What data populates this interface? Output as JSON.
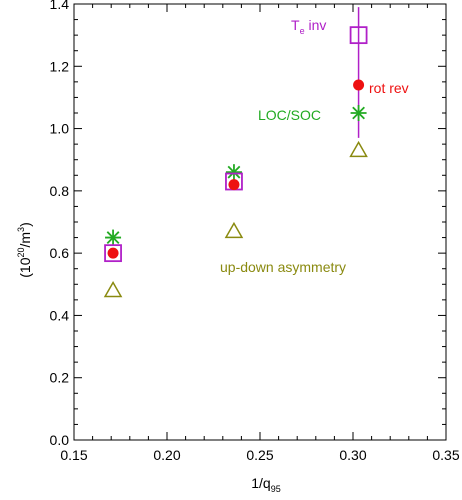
{
  "chart_data": {
    "type": "scatter",
    "xlabel": {
      "main": "1/q",
      "sub": "95"
    },
    "ylabel": {
      "pre": "(10",
      "exp1": "20",
      "mid": "/m",
      "exp2": "3",
      "post": ")"
    },
    "xlim": [
      0.15,
      0.35
    ],
    "ylim": [
      0.0,
      1.4
    ],
    "xticks": [
      "0.15",
      "0.20",
      "0.25",
      "0.30",
      "0.35"
    ],
    "yticks": [
      "0.0",
      "0.2",
      "0.4",
      "0.6",
      "0.8",
      "1.0",
      "1.2",
      "1.4"
    ],
    "series": [
      {
        "name": "T_e inv",
        "marker": "square",
        "color": "#b020c8",
        "x": [
          0.171,
          0.236,
          0.303
        ],
        "y": [
          0.6,
          0.83,
          1.3
        ]
      },
      {
        "name": "rot rev",
        "marker": "circle",
        "color": "#ee1111",
        "x": [
          0.171,
          0.236,
          0.303
        ],
        "y": [
          0.6,
          0.82,
          1.14
        ]
      },
      {
        "name": "LOC/SOC",
        "marker": "asterisk",
        "color": "#22aa22",
        "x": [
          0.171,
          0.236,
          0.303
        ],
        "y": [
          0.65,
          0.86,
          1.05
        ]
      },
      {
        "name": "up-down asymmetry",
        "marker": "triangle",
        "color": "#8a8a10",
        "x": [
          0.171,
          0.236,
          0.303
        ],
        "y": [
          0.48,
          0.67,
          0.93
        ]
      }
    ],
    "errorbar": {
      "x": 0.303,
      "y_low": 0.97,
      "y_high": 1.39,
      "color": "#b020c8"
    },
    "annotations": {
      "te_inv": {
        "main": "T",
        "sub": "e",
        "rest": " inv",
        "color": "#b020c8"
      },
      "rot_rev": {
        "text": "rot rev",
        "color": "#ee1111"
      },
      "loc_soc": {
        "text": "LOC/SOC",
        "color": "#22aa22"
      },
      "updown": {
        "text": "up-down asymmetry",
        "color": "#8a8a10"
      }
    }
  }
}
